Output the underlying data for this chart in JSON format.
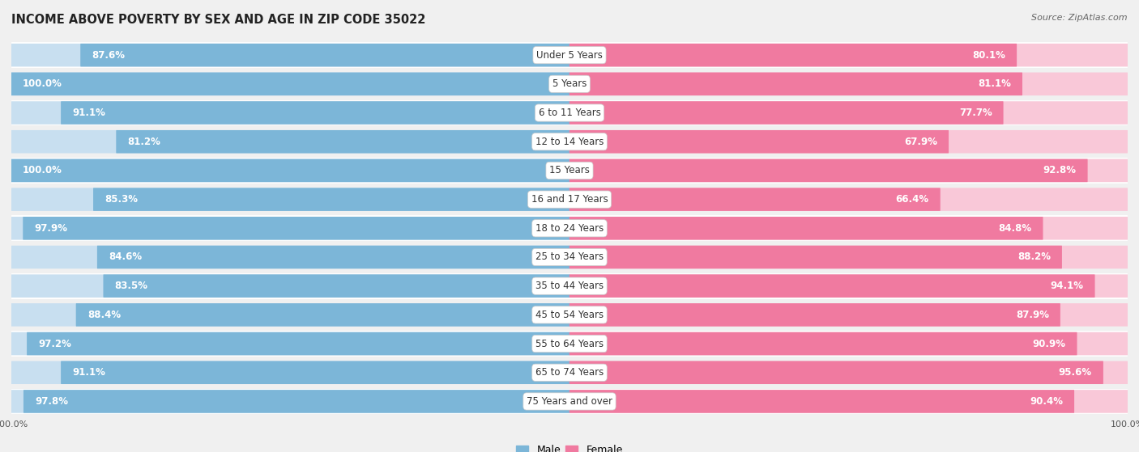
{
  "title": "INCOME ABOVE POVERTY BY SEX AND AGE IN ZIP CODE 35022",
  "source": "Source: ZipAtlas.com",
  "categories": [
    "Under 5 Years",
    "5 Years",
    "6 to 11 Years",
    "12 to 14 Years",
    "15 Years",
    "16 and 17 Years",
    "18 to 24 Years",
    "25 to 34 Years",
    "35 to 44 Years",
    "45 to 54 Years",
    "55 to 64 Years",
    "65 to 74 Years",
    "75 Years and over"
  ],
  "male_values": [
    87.6,
    100.0,
    91.1,
    81.2,
    100.0,
    85.3,
    97.9,
    84.6,
    83.5,
    88.4,
    97.2,
    91.1,
    97.8
  ],
  "female_values": [
    80.1,
    81.1,
    77.7,
    67.9,
    92.8,
    66.4,
    84.8,
    88.2,
    94.1,
    87.9,
    90.9,
    95.6,
    90.4
  ],
  "male_color": "#7cb6d8",
  "female_color": "#f07aa0",
  "male_bg_color": "#c8dff0",
  "female_bg_color": "#f9c8d8",
  "male_label": "Male",
  "female_label": "Female",
  "axis_max": 100.0,
  "bg_color": "#f0f0f0",
  "row_bg_color": "#e8e8e8",
  "title_fontsize": 10.5,
  "value_fontsize": 8.5,
  "category_fontsize": 8.5,
  "source_fontsize": 8
}
